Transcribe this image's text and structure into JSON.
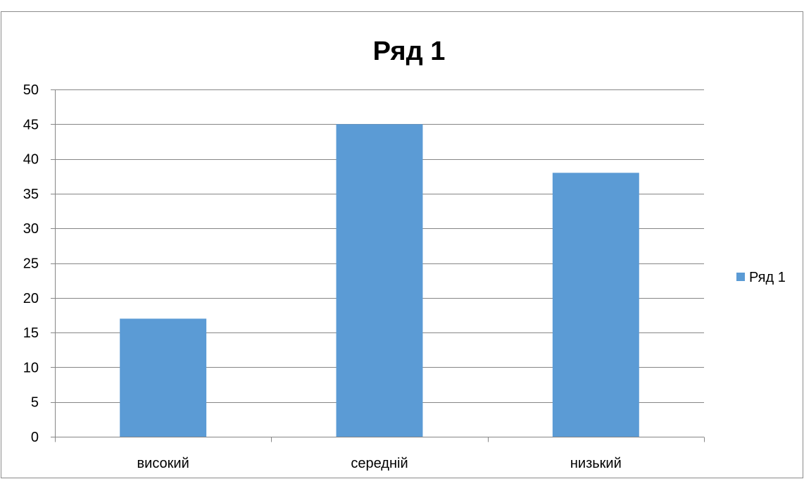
{
  "chart_data": {
    "type": "bar",
    "title": "Ряд 1",
    "xlabel": "",
    "ylabel": "",
    "categories": [
      "високий",
      "середній",
      "низький"
    ],
    "series": [
      {
        "name": "Ряд 1",
        "values": [
          17,
          45,
          38
        ],
        "color": "#5b9bd5"
      }
    ],
    "ylim": [
      0,
      50
    ],
    "yticks": [
      0,
      5,
      10,
      15,
      20,
      25,
      30,
      35,
      40,
      45,
      50
    ],
    "grid": true,
    "legend": "right"
  }
}
